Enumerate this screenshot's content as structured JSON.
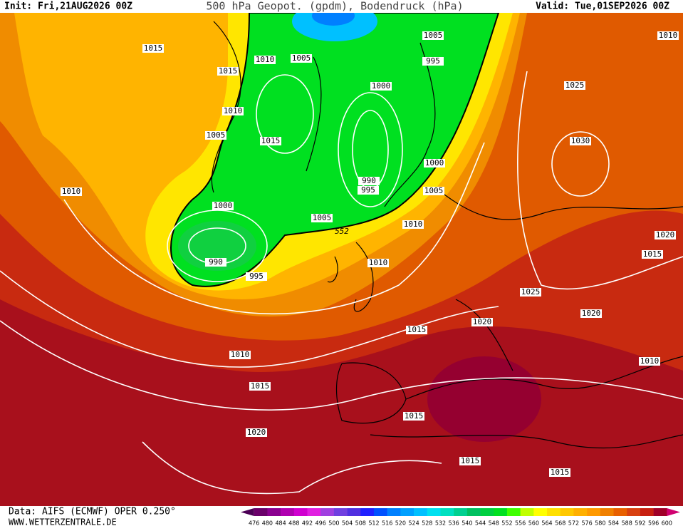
{
  "header": {
    "init": "Init: Fri,21AUG2026 00Z",
    "title": "500 hPa Geopot. (gpdm), Bodendruck (hPa)",
    "valid": "Valid: Tue,01SEP2026 00Z"
  },
  "footer": {
    "source": "Data: AIFS (ECMWF) OPER 0.250°",
    "site": "WWW.WETTERZENTRALE.DE"
  },
  "legend": {
    "labels": [
      476,
      480,
      484,
      488,
      492,
      496,
      500,
      504,
      508,
      512,
      516,
      520,
      524,
      528,
      532,
      536,
      540,
      544,
      548,
      552,
      556,
      560,
      564,
      568,
      572,
      576,
      580,
      584,
      588,
      592,
      596,
      600
    ],
    "colors": [
      "#4b0055",
      "#6a006a",
      "#8a0090",
      "#b000b0",
      "#d000d0",
      "#e020e0",
      "#a040e0",
      "#7040e0",
      "#5030e0",
      "#2020ff",
      "#0050ff",
      "#0080ff",
      "#00a0ff",
      "#00c0ff",
      "#00e0f0",
      "#00e0c0",
      "#00d090",
      "#00c060",
      "#00d040",
      "#00e020",
      "#40ff00",
      "#c0ff00",
      "#ffff00",
      "#ffe000",
      "#ffc800",
      "#ffb000",
      "#ff9a00",
      "#f08000",
      "#e86000",
      "#d84010",
      "#c82010",
      "#a00028",
      "#d00070"
    ]
  },
  "isobar_labels": [
    1015,
    1015,
    1010,
    1005,
    1005,
    995,
    1000,
    1010,
    1005,
    1015,
    1010,
    1000,
    990,
    995,
    1005,
    1000,
    1005,
    1010,
    990,
    995,
    1010,
    1025,
    1030,
    1020,
    1015,
    1025,
    1020,
    1020,
    1015,
    1010,
    1010,
    1015,
    1020,
    1015,
    1015,
    1015,
    1010
  ],
  "contour_label": 552
}
